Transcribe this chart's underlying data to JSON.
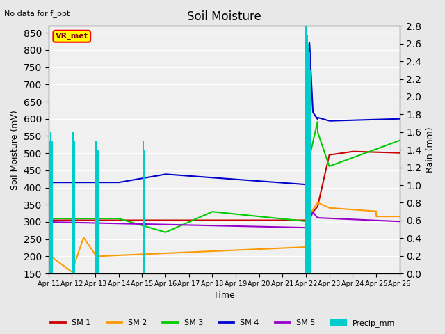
{
  "title": "Soil Moisture",
  "subtitle": "No data for f_ppt",
  "xlabel": "Time",
  "ylabel_left": "Soil Moisture (mV)",
  "ylabel_right": "Rain (mm)",
  "ylim_left": [
    150,
    870
  ],
  "ylim_right": [
    0.0,
    2.8
  ],
  "yticks_left": [
    150,
    200,
    250,
    300,
    350,
    400,
    450,
    500,
    550,
    600,
    650,
    700,
    750,
    800,
    850
  ],
  "yticks_right": [
    0.0,
    0.2,
    0.4,
    0.6,
    0.8,
    1.0,
    1.2,
    1.4,
    1.6,
    1.8,
    2.0,
    2.2,
    2.4,
    2.6,
    2.8
  ],
  "xtick_labels": [
    "Apr 11",
    "Apr 12",
    "Apr 13",
    "Apr 14",
    "Apr 15",
    "Apr 16",
    "Apr 17",
    "Apr 18",
    "Apr 19",
    "Apr 20",
    "Apr 21",
    "Apr 22",
    "Apr 23",
    "Apr 24",
    "Apr 25",
    "Apr 26"
  ],
  "legend_box_text": "VR_met",
  "legend_box_color": "#ffff00",
  "legend_box_border": "#ff0000",
  "background_color": "#e8e8e8",
  "plot_bg_color": "#f0f0f0",
  "grid_color": "#ffffff",
  "colors": {
    "SM1": "#cc0000",
    "SM2": "#ff9900",
    "SM3": "#00cc00",
    "SM4": "#0000cc",
    "SM5": "#9900cc",
    "Precip": "#00cccc"
  }
}
